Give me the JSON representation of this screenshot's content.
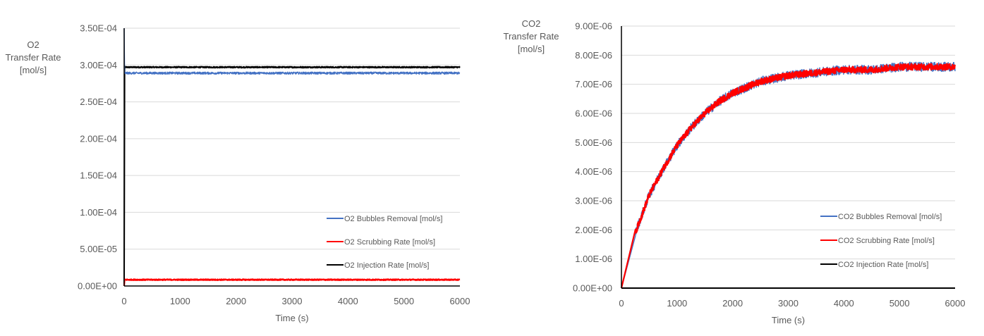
{
  "chart_data": [
    {
      "type": "line",
      "ylabel": "O2\nTransfer Rate\n[mol/s]",
      "xlabel": "Time (s)",
      "xlim": [
        0,
        6000
      ],
      "ylim": [
        0,
        0.00035
      ],
      "xticks": [
        0,
        1000,
        2000,
        3000,
        4000,
        5000,
        6000
      ],
      "xtick_labels": [
        "0",
        "1000",
        "2000",
        "3000",
        "4000",
        "5000",
        "6000"
      ],
      "yticks": [
        0,
        5e-05,
        0.0001,
        0.00015,
        0.0002,
        0.00025,
        0.0003,
        0.00035
      ],
      "ytick_labels": [
        "0.00E+00",
        "5.00E-05",
        "1.00E-04",
        "1.50E-04",
        "2.00E-04",
        "2.50E-04",
        "3.00E-04",
        "3.50E-04"
      ],
      "grid": "horizontal",
      "legend_position": "bottom-right",
      "series": [
        {
          "name": "O2 Bubbles Removal [mol/s]",
          "color": "#4472c4",
          "x": [
            0,
            5,
            6000
          ],
          "values": [
            0.00035,
            0.000289,
            0.000289
          ],
          "noise": 1.5e-06
        },
        {
          "name": "O2 Scrubbing Rate [mol/s]",
          "color": "#ff0000",
          "x": [
            0,
            5,
            6000
          ],
          "values": [
            0,
            8.5e-06,
            8.5e-06
          ],
          "noise": 7e-07
        },
        {
          "name": "O2 Injection Rate [mol/s]",
          "color": "#000000",
          "x": [
            0,
            5,
            6000
          ],
          "values": [
            0,
            0.000297,
            0.000297
          ],
          "noise": 8e-07
        }
      ]
    },
    {
      "type": "line",
      "ylabel": "CO2\nTransfer Rate\n[mol/s]",
      "xlabel": "Time (s)",
      "xlim": [
        0,
        6000
      ],
      "ylim": [
        0,
        9e-06
      ],
      "xticks": [
        0,
        1000,
        2000,
        3000,
        4000,
        5000,
        6000
      ],
      "xtick_labels": [
        "0",
        "1000",
        "2000",
        "3000",
        "4000",
        "5000",
        "6000"
      ],
      "yticks": [
        0,
        1e-06,
        2e-06,
        3e-06,
        4e-06,
        5e-06,
        6e-06,
        7e-06,
        8e-06,
        9e-06
      ],
      "ytick_labels": [
        "0.00E+00",
        "1.00E-06",
        "2.00E-06",
        "3.00E-06",
        "4.00E-06",
        "5.00E-06",
        "6.00E-06",
        "7.00E-06",
        "8.00E-06",
        "9.00E-06"
      ],
      "grid": "horizontal",
      "legend_position": "bottom-right",
      "series": [
        {
          "name": "CO2 Bubbles Removal [mol/s]",
          "color": "#4472c4",
          "x": [
            0,
            250,
            500,
            750,
            1000,
            1250,
            1500,
            1750,
            2000,
            2500,
            3000,
            3500,
            4000,
            4500,
            5000,
            5500,
            6000
          ],
          "values": [
            0,
            1.9e-06,
            3.2e-06,
            4.1e-06,
            4.9e-06,
            5.5e-06,
            6e-06,
            6.4e-06,
            6.7e-06,
            7.1e-06,
            7.3e-06,
            7.4e-06,
            7.5e-06,
            7.5e-06,
            7.6e-06,
            7.6e-06,
            7.6e-06
          ],
          "noise": 1.6e-07
        },
        {
          "name": "CO2 Scrubbing Rate [mol/s]",
          "color": "#ff0000",
          "x": [
            0,
            250,
            500,
            750,
            1000,
            1250,
            1500,
            1750,
            2000,
            2500,
            3000,
            3500,
            4000,
            4500,
            5000,
            5500,
            6000
          ],
          "values": [
            0,
            1.9e-06,
            3.2e-06,
            4.1e-06,
            4.9e-06,
            5.5e-06,
            6e-06,
            6.4e-06,
            6.7e-06,
            7.1e-06,
            7.3e-06,
            7.4e-06,
            7.5e-06,
            7.5e-06,
            7.6e-06,
            7.6e-06,
            7.6e-06
          ],
          "noise": 1.1e-07
        },
        {
          "name": "CO2 Injection Rate [mol/s]",
          "color": "#000000",
          "x": [
            0,
            6000
          ],
          "values": [
            0,
            0
          ],
          "noise": 0
        }
      ]
    }
  ]
}
